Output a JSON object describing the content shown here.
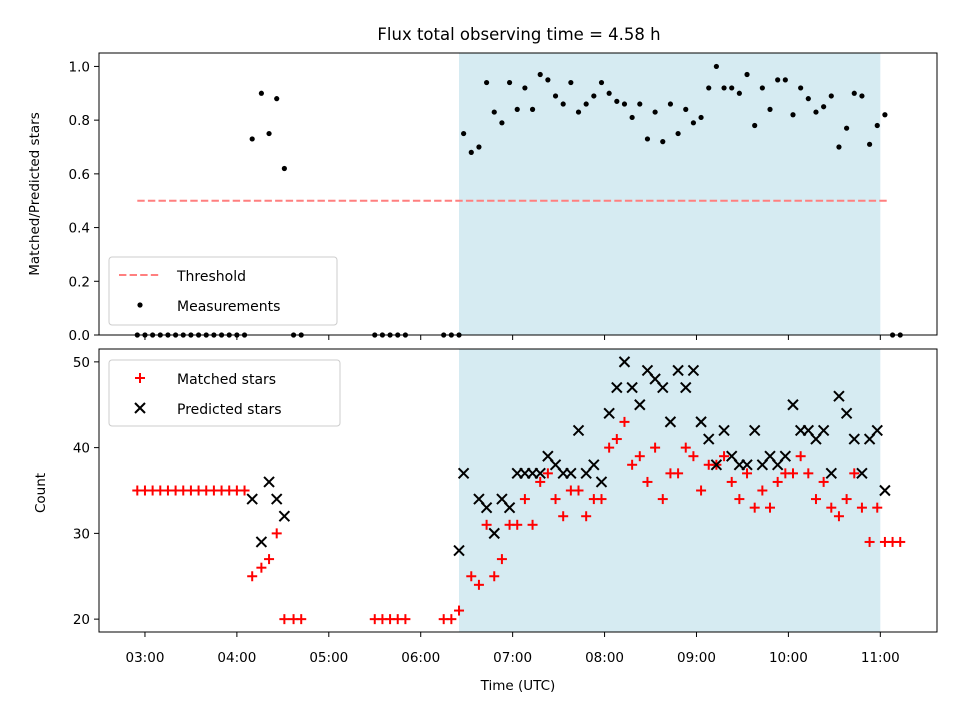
{
  "chart_data": [
    {
      "type": "scatter",
      "title": "Flux total observing time = 4.58 h",
      "ylabel": "Matched/Predicted stars",
      "xlabel": "",
      "xlim": [
        "02:30",
        "11:37"
      ],
      "ylim": [
        0,
        1.05
      ],
      "yticks": [
        "0.0",
        "0.2",
        "0.4",
        "0.6",
        "0.8",
        "1.0"
      ],
      "highlight_span": [
        "06:25",
        "11:00"
      ],
      "highlight_color": "#add8e6",
      "threshold": {
        "name": "Threshold",
        "value": 0.5,
        "x": [
          "02:55",
          "11:05"
        ],
        "color": "#ff7f7f"
      },
      "legend": {
        "position": "lower-left",
        "entries": [
          "Threshold",
          "Measurements"
        ]
      },
      "series": [
        {
          "name": "Measurements",
          "color": "#000000",
          "marker": "dot",
          "points": [
            [
              "02:55",
              0
            ],
            [
              "03:00",
              0
            ],
            [
              "03:05",
              0
            ],
            [
              "03:10",
              0
            ],
            [
              "03:15",
              0
            ],
            [
              "03:20",
              0
            ],
            [
              "03:25",
              0
            ],
            [
              "03:30",
              0
            ],
            [
              "03:35",
              0
            ],
            [
              "03:40",
              0
            ],
            [
              "03:45",
              0
            ],
            [
              "03:50",
              0
            ],
            [
              "03:55",
              0
            ],
            [
              "04:00",
              0
            ],
            [
              "04:05",
              0
            ],
            [
              "04:10",
              0.73
            ],
            [
              "04:16",
              0.9
            ],
            [
              "04:21",
              0.75
            ],
            [
              "04:26",
              0.88
            ],
            [
              "04:31",
              0.62
            ],
            [
              "04:37",
              0
            ],
            [
              "04:42",
              0
            ],
            [
              "05:30",
              0
            ],
            [
              "05:35",
              0
            ],
            [
              "05:40",
              0
            ],
            [
              "05:45",
              0
            ],
            [
              "05:50",
              0
            ],
            [
              "06:15",
              0
            ],
            [
              "06:20",
              0
            ],
            [
              "06:25",
              0
            ],
            [
              "06:28",
              0.75
            ],
            [
              "06:33",
              0.68
            ],
            [
              "06:38",
              0.7
            ],
            [
              "06:43",
              0.94
            ],
            [
              "06:48",
              0.83
            ],
            [
              "06:53",
              0.79
            ],
            [
              "06:58",
              0.94
            ],
            [
              "07:03",
              0.84
            ],
            [
              "07:08",
              0.92
            ],
            [
              "07:13",
              0.84
            ],
            [
              "07:18",
              0.97
            ],
            [
              "07:23",
              0.95
            ],
            [
              "07:28",
              0.89
            ],
            [
              "07:33",
              0.86
            ],
            [
              "07:38",
              0.94
            ],
            [
              "07:43",
              0.83
            ],
            [
              "07:48",
              0.86
            ],
            [
              "07:53",
              0.89
            ],
            [
              "07:58",
              0.94
            ],
            [
              "08:03",
              0.9
            ],
            [
              "08:08",
              0.87
            ],
            [
              "08:13",
              0.86
            ],
            [
              "08:18",
              0.81
            ],
            [
              "08:23",
              0.86
            ],
            [
              "08:28",
              0.73
            ],
            [
              "08:33",
              0.83
            ],
            [
              "08:38",
              0.72
            ],
            [
              "08:43",
              0.86
            ],
            [
              "08:48",
              0.75
            ],
            [
              "08:53",
              0.84
            ],
            [
              "08:58",
              0.79
            ],
            [
              "09:03",
              0.81
            ],
            [
              "09:08",
              0.92
            ],
            [
              "09:13",
              1.0
            ],
            [
              "09:18",
              0.92
            ],
            [
              "09:23",
              0.92
            ],
            [
              "09:28",
              0.9
            ],
            [
              "09:33",
              0.97
            ],
            [
              "09:38",
              0.78
            ],
            [
              "09:43",
              0.92
            ],
            [
              "09:48",
              0.84
            ],
            [
              "09:53",
              0.95
            ],
            [
              "09:58",
              0.95
            ],
            [
              "10:03",
              0.82
            ],
            [
              "10:08",
              0.92
            ],
            [
              "10:13",
              0.88
            ],
            [
              "10:18",
              0.83
            ],
            [
              "10:23",
              0.85
            ],
            [
              "10:28",
              0.89
            ],
            [
              "10:33",
              0.7
            ],
            [
              "10:38",
              0.77
            ],
            [
              "10:43",
              0.9
            ],
            [
              "10:48",
              0.89
            ],
            [
              "10:53",
              0.71
            ],
            [
              "10:58",
              0.78
            ],
            [
              "11:03",
              0.82
            ],
            [
              "11:08",
              0
            ],
            [
              "11:13",
              0
            ]
          ]
        }
      ]
    },
    {
      "type": "scatter",
      "title": "",
      "ylabel": "Count",
      "xlabel": "Time (UTC)",
      "xlim": [
        "02:30",
        "11:37"
      ],
      "ylim": [
        18.5,
        51.5
      ],
      "yticks": [
        "20",
        "30",
        "40",
        "50"
      ],
      "xticks": [
        "03:00",
        "04:00",
        "05:00",
        "06:00",
        "07:00",
        "08:00",
        "09:00",
        "10:00",
        "11:00"
      ],
      "highlight_span": [
        "06:25",
        "11:00"
      ],
      "highlight_color": "#add8e6",
      "legend": {
        "position": "top-left",
        "entries": [
          "Matched stars",
          "Predicted stars"
        ]
      },
      "series": [
        {
          "name": "Matched stars",
          "color": "#ff0000",
          "marker": "plus",
          "points": [
            [
              "02:55",
              35
            ],
            [
              "03:00",
              35
            ],
            [
              "03:05",
              35
            ],
            [
              "03:10",
              35
            ],
            [
              "03:15",
              35
            ],
            [
              "03:20",
              35
            ],
            [
              "03:25",
              35
            ],
            [
              "03:30",
              35
            ],
            [
              "03:35",
              35
            ],
            [
              "03:40",
              35
            ],
            [
              "03:45",
              35
            ],
            [
              "03:50",
              35
            ],
            [
              "03:55",
              35
            ],
            [
              "04:00",
              35
            ],
            [
              "04:05",
              35
            ],
            [
              "04:10",
              25
            ],
            [
              "04:16",
              26
            ],
            [
              "04:21",
              27
            ],
            [
              "04:26",
              30
            ],
            [
              "04:31",
              20
            ],
            [
              "04:37",
              20
            ],
            [
              "04:42",
              20
            ],
            [
              "05:30",
              20
            ],
            [
              "05:35",
              20
            ],
            [
              "05:40",
              20
            ],
            [
              "05:45",
              20
            ],
            [
              "05:50",
              20
            ],
            [
              "06:15",
              20
            ],
            [
              "06:20",
              20
            ],
            [
              "06:25",
              21
            ],
            [
              "06:33",
              25
            ],
            [
              "06:38",
              24
            ],
            [
              "06:43",
              31
            ],
            [
              "06:48",
              25
            ],
            [
              "06:53",
              27
            ],
            [
              "06:58",
              31
            ],
            [
              "07:03",
              31
            ],
            [
              "07:08",
              34
            ],
            [
              "07:13",
              31
            ],
            [
              "07:18",
              36
            ],
            [
              "07:23",
              37
            ],
            [
              "07:28",
              34
            ],
            [
              "07:33",
              32
            ],
            [
              "07:38",
              35
            ],
            [
              "07:43",
              35
            ],
            [
              "07:48",
              32
            ],
            [
              "07:53",
              34
            ],
            [
              "07:58",
              34
            ],
            [
              "08:03",
              40
            ],
            [
              "08:08",
              41
            ],
            [
              "08:13",
              43
            ],
            [
              "08:18",
              38
            ],
            [
              "08:23",
              39
            ],
            [
              "08:28",
              36
            ],
            [
              "08:33",
              40
            ],
            [
              "08:38",
              34
            ],
            [
              "08:43",
              37
            ],
            [
              "08:48",
              37
            ],
            [
              "08:53",
              40
            ],
            [
              "08:58",
              39
            ],
            [
              "09:03",
              35
            ],
            [
              "09:08",
              38
            ],
            [
              "09:13",
              38
            ],
            [
              "09:18",
              39
            ],
            [
              "09:23",
              36
            ],
            [
              "09:28",
              34
            ],
            [
              "09:33",
              37
            ],
            [
              "09:38",
              33
            ],
            [
              "09:43",
              35
            ],
            [
              "09:48",
              33
            ],
            [
              "09:53",
              36
            ],
            [
              "09:58",
              37
            ],
            [
              "10:03",
              37
            ],
            [
              "10:08",
              39
            ],
            [
              "10:13",
              37
            ],
            [
              "10:18",
              34
            ],
            [
              "10:23",
              36
            ],
            [
              "10:28",
              33
            ],
            [
              "10:33",
              32
            ],
            [
              "10:38",
              34
            ],
            [
              "10:43",
              37
            ],
            [
              "10:48",
              33
            ],
            [
              "10:53",
              29
            ],
            [
              "10:58",
              33
            ],
            [
              "11:03",
              29
            ],
            [
              "11:08",
              29
            ],
            [
              "11:13",
              29
            ]
          ]
        },
        {
          "name": "Predicted stars",
          "color": "#000000",
          "marker": "x",
          "points": [
            [
              "04:10",
              34
            ],
            [
              "04:16",
              29
            ],
            [
              "04:21",
              36
            ],
            [
              "04:26",
              34
            ],
            [
              "04:31",
              32
            ],
            [
              "06:25",
              28
            ],
            [
              "06:28",
              37
            ],
            [
              "06:38",
              34
            ],
            [
              "06:43",
              33
            ],
            [
              "06:48",
              30
            ],
            [
              "06:53",
              34
            ],
            [
              "06:58",
              33
            ],
            [
              "07:03",
              37
            ],
            [
              "07:08",
              37
            ],
            [
              "07:13",
              37
            ],
            [
              "07:18",
              37
            ],
            [
              "07:23",
              39
            ],
            [
              "07:28",
              38
            ],
            [
              "07:33",
              37
            ],
            [
              "07:38",
              37
            ],
            [
              "07:43",
              42
            ],
            [
              "07:48",
              37
            ],
            [
              "07:53",
              38
            ],
            [
              "07:58",
              36
            ],
            [
              "08:03",
              44
            ],
            [
              "08:08",
              47
            ],
            [
              "08:13",
              50
            ],
            [
              "08:18",
              47
            ],
            [
              "08:23",
              45
            ],
            [
              "08:28",
              49
            ],
            [
              "08:33",
              48
            ],
            [
              "08:38",
              47
            ],
            [
              "08:43",
              43
            ],
            [
              "08:48",
              49
            ],
            [
              "08:53",
              47
            ],
            [
              "08:58",
              49
            ],
            [
              "09:03",
              43
            ],
            [
              "09:08",
              41
            ],
            [
              "09:13",
              38
            ],
            [
              "09:18",
              42
            ],
            [
              "09:23",
              39
            ],
            [
              "09:28",
              38
            ],
            [
              "09:33",
              38
            ],
            [
              "09:38",
              42
            ],
            [
              "09:43",
              38
            ],
            [
              "09:48",
              39
            ],
            [
              "09:53",
              38
            ],
            [
              "09:58",
              39
            ],
            [
              "10:03",
              45
            ],
            [
              "10:08",
              42
            ],
            [
              "10:13",
              42
            ],
            [
              "10:18",
              41
            ],
            [
              "10:23",
              42
            ],
            [
              "10:28",
              37
            ],
            [
              "10:33",
              46
            ],
            [
              "10:38",
              44
            ],
            [
              "10:43",
              41
            ],
            [
              "10:48",
              37
            ],
            [
              "10:53",
              41
            ],
            [
              "10:58",
              42
            ],
            [
              "11:03",
              35
            ]
          ]
        }
      ]
    }
  ]
}
